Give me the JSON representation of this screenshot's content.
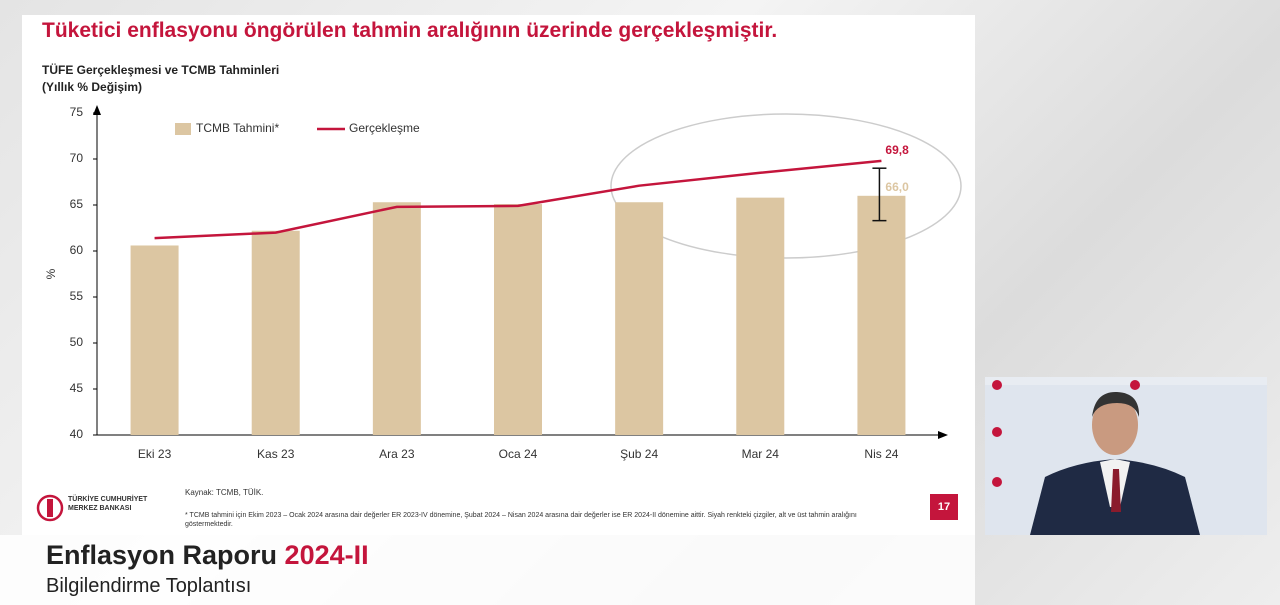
{
  "headline": "Tüketici enflasyonu öngörülen tahmin aralığının üzerinde gerçekleşmiştir.",
  "chart_data": {
    "type": "bar-line",
    "title": "TÜFE Gerçekleşmesi ve TCMB Tahminleri",
    "subtitle": "(Yıllık % Değişim)",
    "y_label": "%",
    "categories": [
      "Eki 23",
      "Kas 23",
      "Ara 23",
      "Oca 24",
      "Şub 24",
      "Mar 24",
      "Nis 24"
    ],
    "series": [
      {
        "name": "TCMB Tahmini*",
        "kind": "bar",
        "color": "#dcc6a2",
        "values": [
          60.6,
          62.2,
          65.3,
          65.1,
          65.3,
          65.8,
          66.0
        ],
        "value_labels": [
          null,
          null,
          null,
          null,
          null,
          null,
          "66,0"
        ],
        "error_low": [
          null,
          null,
          null,
          null,
          null,
          null,
          63.3
        ],
        "error_high": [
          null,
          null,
          null,
          null,
          null,
          null,
          69.0
        ]
      },
      {
        "name": "Gerçekleşme",
        "kind": "line",
        "color": "#c4153c",
        "values": [
          61.4,
          62.0,
          64.8,
          64.9,
          67.1,
          68.5,
          69.8
        ],
        "value_labels": [
          null,
          null,
          null,
          null,
          null,
          null,
          "69,8"
        ]
      }
    ],
    "ylim": [
      40,
      75
    ],
    "yticks": [
      40,
      45,
      50,
      55,
      60,
      65,
      70,
      75
    ],
    "legend": "top-left"
  },
  "source": "Kaynak: TCMB, TÜİK.",
  "footnote": "* TCMB tahmini için Ekim 2023 – Ocak 2024 arasına dair değerler ER 2023-IV dönemine, Şubat 2024 – Nisan 2024 arasına dair değerler ise ER 2024-II dönemine aittir. Siyah renkteki çizgiler, alt ve üst tahmin aralığını göstermektedir.",
  "page_number": "17",
  "logo": {
    "line1": "TÜRKİYE CUMHURİYET",
    "line2": "MERKEZ BANKASI"
  },
  "lower_third": {
    "title": "Enflasyon Raporu",
    "edition": "2024-II",
    "subtitle": "Bilgilendirme Toplantısı"
  }
}
